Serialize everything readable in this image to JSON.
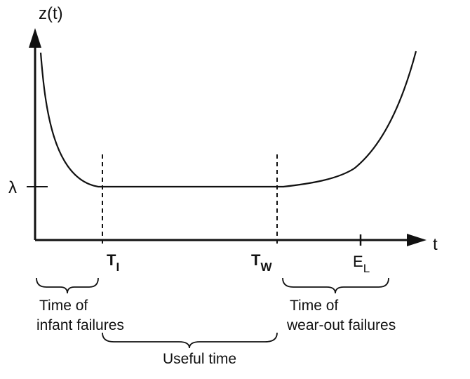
{
  "diagram": {
    "y_axis_label": "z(t)",
    "x_axis_label": "t",
    "lambda_label": "λ",
    "markers": {
      "ti": {
        "main": "T",
        "sub": "I"
      },
      "tw": {
        "main": "T",
        "sub": "W"
      },
      "el": {
        "main": "E",
        "sub": "L"
      }
    },
    "regions": {
      "infant": {
        "line1": "Time of",
        "line2": "infant failures"
      },
      "useful": {
        "label": "Useful time"
      },
      "wearout": {
        "line1": "Time of",
        "line2": "wear-out failures"
      }
    },
    "colors": {
      "stroke": "#111111",
      "background": "#ffffff"
    }
  }
}
